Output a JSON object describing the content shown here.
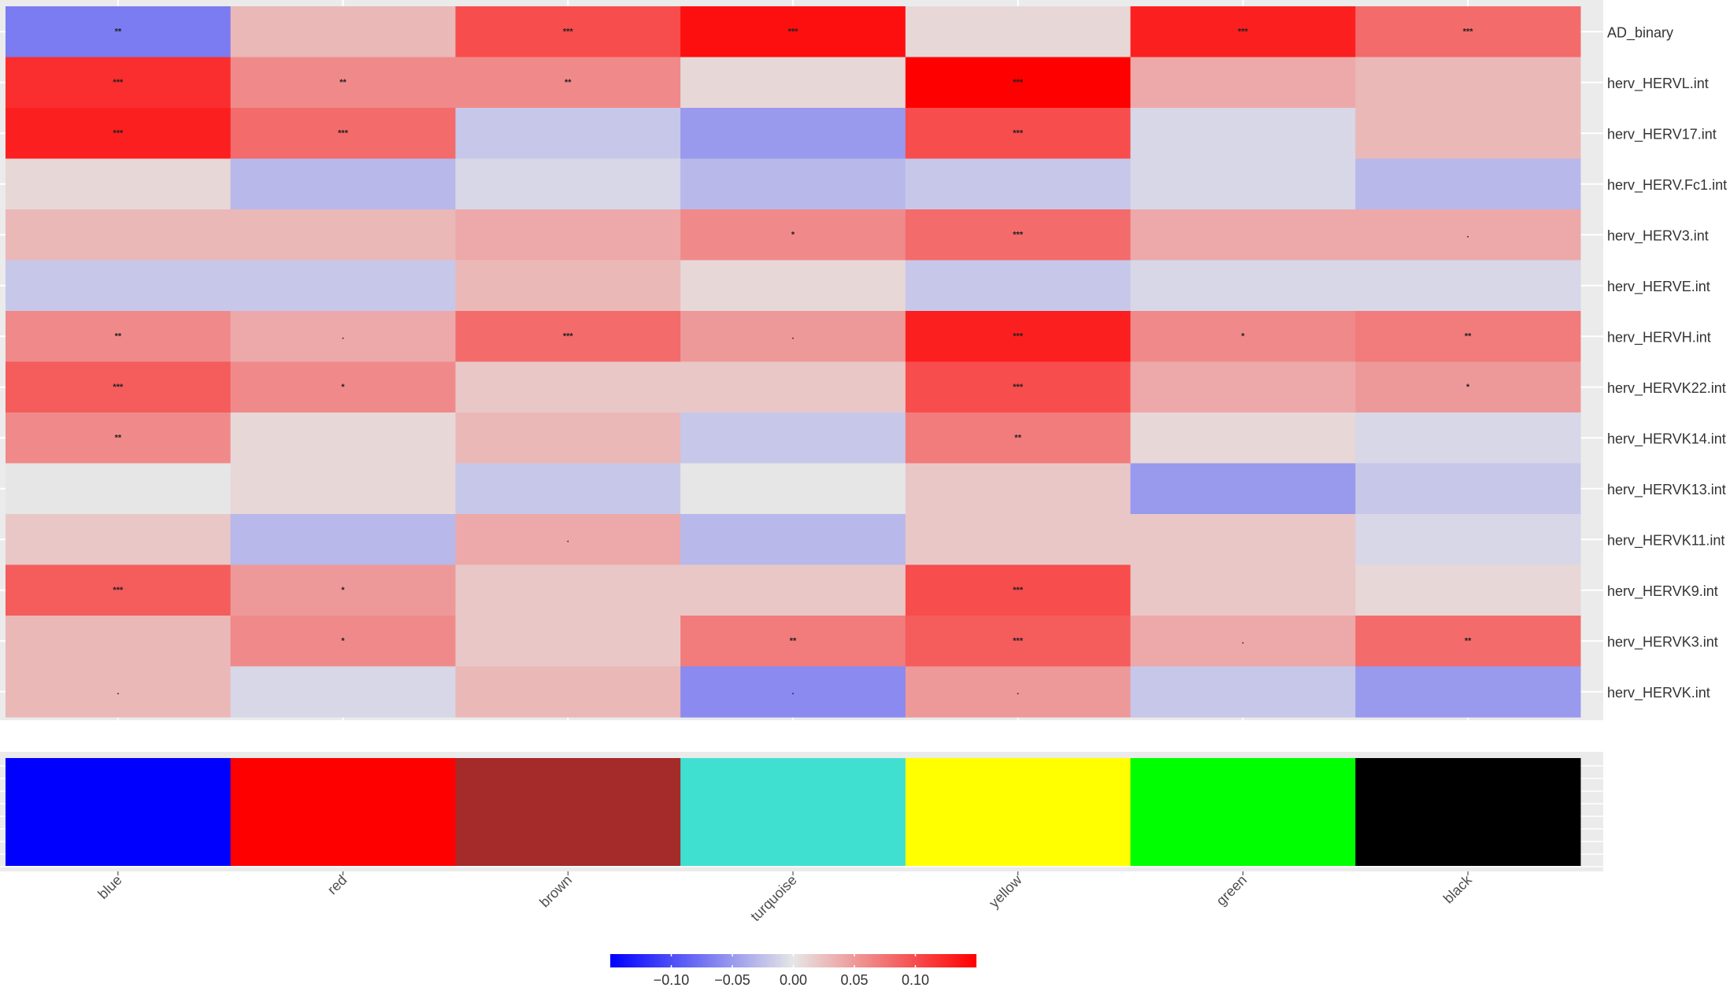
{
  "chart_data": {
    "type": "heatmap",
    "columns": [
      "blue",
      "red",
      "brown",
      "turquoise",
      "yellow",
      "green",
      "black"
    ],
    "rows": [
      "AD_binary",
      "herv_HERVL.int",
      "herv_HERV17.int",
      "herv_HERV.Fc1.int",
      "herv_HERV3.int",
      "herv_HERVE.int",
      "herv_HERVH.int",
      "herv_HERVK22.int",
      "herv_HERVK14.int",
      "herv_HERVK13.int",
      "herv_HERVK11.int",
      "herv_HERVK9.int",
      "herv_HERVK3.int",
      "herv_HERVK.int"
    ],
    "values": [
      [
        -0.07,
        0.03,
        0.1,
        0.14,
        0.01,
        0.13,
        0.08
      ],
      [
        0.12,
        0.06,
        0.06,
        0.01,
        0.15,
        0.04,
        0.03
      ],
      [
        0.13,
        0.08,
        -0.02,
        -0.05,
        0.1,
        -0.01,
        0.03
      ],
      [
        0.01,
        -0.03,
        -0.01,
        -0.03,
        -0.02,
        -0.01,
        -0.03
      ],
      [
        0.03,
        0.03,
        0.04,
        0.06,
        0.08,
        0.04,
        0.04
      ],
      [
        -0.02,
        -0.02,
        0.03,
        0.01,
        -0.02,
        -0.01,
        -0.01
      ],
      [
        0.06,
        0.04,
        0.08,
        0.05,
        0.13,
        0.06,
        0.07
      ],
      [
        0.09,
        0.06,
        0.02,
        0.02,
        0.1,
        0.04,
        0.05
      ],
      [
        0.06,
        0.01,
        0.03,
        -0.02,
        0.07,
        0.01,
        -0.01
      ],
      [
        0.0,
        0.01,
        -0.02,
        0.0,
        0.02,
        -0.05,
        -0.02
      ],
      [
        0.02,
        -0.03,
        0.04,
        -0.03,
        0.02,
        0.02,
        -0.01
      ],
      [
        0.09,
        0.05,
        0.02,
        0.02,
        0.1,
        0.02,
        0.01
      ],
      [
        0.03,
        0.06,
        0.02,
        0.07,
        0.09,
        0.04,
        0.08
      ],
      [
        0.03,
        -0.01,
        0.03,
        -0.06,
        0.05,
        -0.02,
        -0.05
      ]
    ],
    "significance": [
      [
        "**",
        "",
        "***",
        "***",
        "",
        "***",
        "***"
      ],
      [
        "***",
        "**",
        "**",
        "",
        "***",
        "",
        ""
      ],
      [
        "***",
        "***",
        "",
        "",
        "***",
        "",
        ""
      ],
      [
        "",
        "",
        "",
        "",
        "",
        "",
        ""
      ],
      [
        "",
        "",
        "",
        "*",
        "***",
        "",
        "."
      ],
      [
        "",
        "",
        "",
        "",
        "",
        "",
        ""
      ],
      [
        "**",
        ".",
        "***",
        ".",
        "***",
        "*",
        "**"
      ],
      [
        "***",
        "*",
        "",
        "",
        "***",
        "",
        "*"
      ],
      [
        "**",
        "",
        "",
        "",
        "**",
        "",
        ""
      ],
      [
        "",
        "",
        "",
        "",
        "",
        "",
        ""
      ],
      [
        "",
        "",
        ".",
        "",
        "",
        "",
        ""
      ],
      [
        "***",
        "*",
        "",
        "",
        "***",
        "",
        ""
      ],
      [
        "",
        "*",
        "",
        "**",
        "***",
        ".",
        "**"
      ],
      [
        ".",
        "",
        "",
        ".",
        ".",
        "",
        ""
      ]
    ],
    "module_colors": [
      "#0000ff",
      "#ff0000",
      "#a52a2a",
      "#40e0d0",
      "#ffff00",
      "#00ff00",
      "#000000"
    ],
    "color_scale": {
      "low": "#0000ff",
      "mid": "#e6e6e6",
      "high": "#ff0000",
      "limits": [
        -0.15,
        0.15
      ]
    },
    "legend": {
      "position": "bottom",
      "ticks": [
        -0.1,
        -0.05,
        0.0,
        0.05,
        0.1
      ],
      "tick_labels": [
        "−0.10",
        "−0.05",
        "0.00",
        "0.05",
        "0.10"
      ]
    },
    "panel_background": "#ebebeb",
    "grid": true
  }
}
